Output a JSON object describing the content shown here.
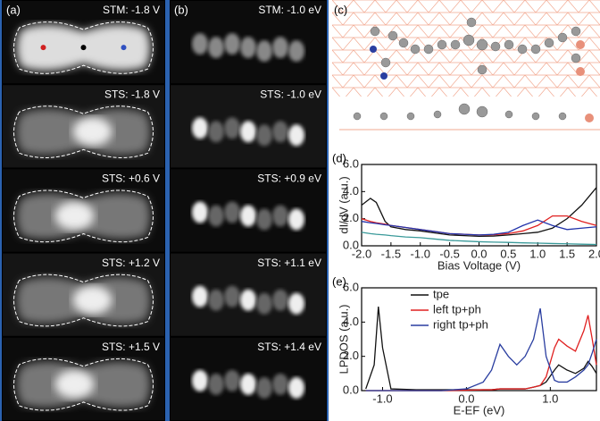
{
  "panel_a": {
    "label": "(a)",
    "images": [
      "STM: -1.8 V",
      "STS: -1.8 V",
      "STS: +0.6 V",
      "STS: +1.2 V",
      "STS: +1.5 V"
    ]
  },
  "panel_b": {
    "label": "(b)",
    "images": [
      "STM: -1.0 eV",
      "STS: -1.0 eV",
      "STS: +0.9 eV",
      "STS: +1.1 eV",
      "STS: +1.4 eV"
    ]
  },
  "panel_c": {
    "label": "(c)"
  },
  "chart_data": [
    {
      "type": "line",
      "label": "(d)",
      "x_label": "Bias Voltage (V)",
      "y_label": "dI/dV (a.u.)",
      "xlim": [
        -2,
        2
      ],
      "ylim": [
        0,
        6
      ],
      "xticks": [
        {
          "value": -2,
          "label": "-2.0"
        },
        -1.5,
        {
          "value": -1,
          "label": "-1.0"
        },
        -0.5,
        {
          "value": 0,
          "label": "0.0"
        },
        0.5,
        {
          "value": 1,
          "label": "1.0"
        },
        1.5,
        {
          "value": 2,
          "label": "2.0"
        }
      ],
      "yticks": [
        {
          "value": 0,
          "label": "0.0"
        },
        {
          "value": 2,
          "label": "2.0"
        },
        {
          "value": 4,
          "label": "4.0"
        },
        {
          "value": 6,
          "label": "6.0"
        }
      ],
      "x": [
        -2,
        -1.85,
        -1.75,
        -1.6,
        -1.5,
        -1.25,
        -1,
        -0.75,
        -0.5,
        -0.25,
        0,
        0.25,
        0.5,
        0.75,
        1,
        1.25,
        1.5,
        1.75,
        2
      ],
      "series": [
        {
          "color": "#111111",
          "values": [
            3.0,
            3.5,
            3.2,
            1.8,
            1.4,
            1.2,
            1.1,
            0.95,
            0.8,
            0.75,
            0.7,
            0.72,
            0.8,
            0.9,
            1.0,
            1.3,
            2.0,
            3.0,
            4.3
          ]
        },
        {
          "color": "#e02020",
          "values": [
            2.0,
            1.8,
            1.7,
            1.6,
            1.5,
            1.35,
            1.2,
            1.05,
            0.9,
            0.85,
            0.8,
            0.82,
            0.9,
            1.1,
            1.5,
            2.2,
            2.2,
            1.8,
            1.5
          ]
        },
        {
          "color": "#2233aa",
          "values": [
            1.8,
            1.7,
            1.65,
            1.55,
            1.5,
            1.35,
            1.2,
            1.05,
            0.9,
            0.85,
            0.8,
            0.85,
            1.0,
            1.5,
            1.9,
            1.5,
            1.2,
            1.3,
            1.4
          ]
        },
        {
          "color": "#3a9a9a",
          "values": [
            1.0,
            0.9,
            0.85,
            0.8,
            0.75,
            0.65,
            0.6,
            0.5,
            0.4,
            0.35,
            0.3,
            0.27,
            0.25,
            0.22,
            0.2,
            0.17,
            0.15,
            0.12,
            0.1
          ]
        }
      ]
    },
    {
      "type": "line",
      "label": "(e)",
      "x_label": "E-EF (eV)",
      "y_label": "LPDOS (a.u.)",
      "xlim": [
        -1.25,
        1.55
      ],
      "ylim": [
        0,
        6
      ],
      "legend": "upper left",
      "xticks": [
        {
          "value": -1,
          "label": "-1.0"
        },
        {
          "value": 0,
          "label": "0.0"
        },
        {
          "value": 1,
          "label": "1.0"
        }
      ],
      "yticks": [
        {
          "value": 0,
          "label": "0.0"
        },
        {
          "value": 2,
          "label": "2.0"
        },
        {
          "value": 4,
          "label": "4.0"
        },
        {
          "value": 6,
          "label": "6.0"
        }
      ],
      "x": [
        -1.2,
        -1.1,
        -1.05,
        -1.0,
        -0.9,
        -0.6,
        -0.3,
        0,
        0.2,
        0.3,
        0.4,
        0.5,
        0.6,
        0.7,
        0.8,
        0.88,
        0.95,
        1.05,
        1.1,
        1.2,
        1.3,
        1.4,
        1.45,
        1.5,
        1.55
      ],
      "series": [
        {
          "name": "tpe",
          "color": "#111111",
          "values": [
            0.1,
            1.5,
            4.9,
            2.5,
            0.1,
            0.05,
            0.05,
            0.05,
            0.05,
            0.05,
            0.1,
            0.1,
            0.1,
            0.1,
            0.2,
            0.3,
            0.5,
            1.2,
            1.5,
            1.2,
            1.0,
            1.3,
            1.7,
            1.4,
            1.0
          ]
        },
        {
          "name": "left tp+ph",
          "color": "#e02020",
          "values": [
            0,
            0,
            0,
            0,
            0,
            0,
            0,
            0.02,
            0.05,
            0.05,
            0.1,
            0.1,
            0.1,
            0.1,
            0.2,
            0.3,
            0.8,
            2.5,
            3.0,
            2.6,
            2.3,
            3.5,
            4.4,
            3.0,
            1.5
          ]
        },
        {
          "name": "right tp+ph",
          "color": "#2a3ea0",
          "values": [
            0,
            0,
            0,
            0,
            0,
            0,
            0,
            0.1,
            0.5,
            1.2,
            2.7,
            2.0,
            1.5,
            2.0,
            3.0,
            4.8,
            2.0,
            0.6,
            0.5,
            0.5,
            0.8,
            1.2,
            1.5,
            2.2,
            3.0
          ]
        }
      ]
    }
  ]
}
